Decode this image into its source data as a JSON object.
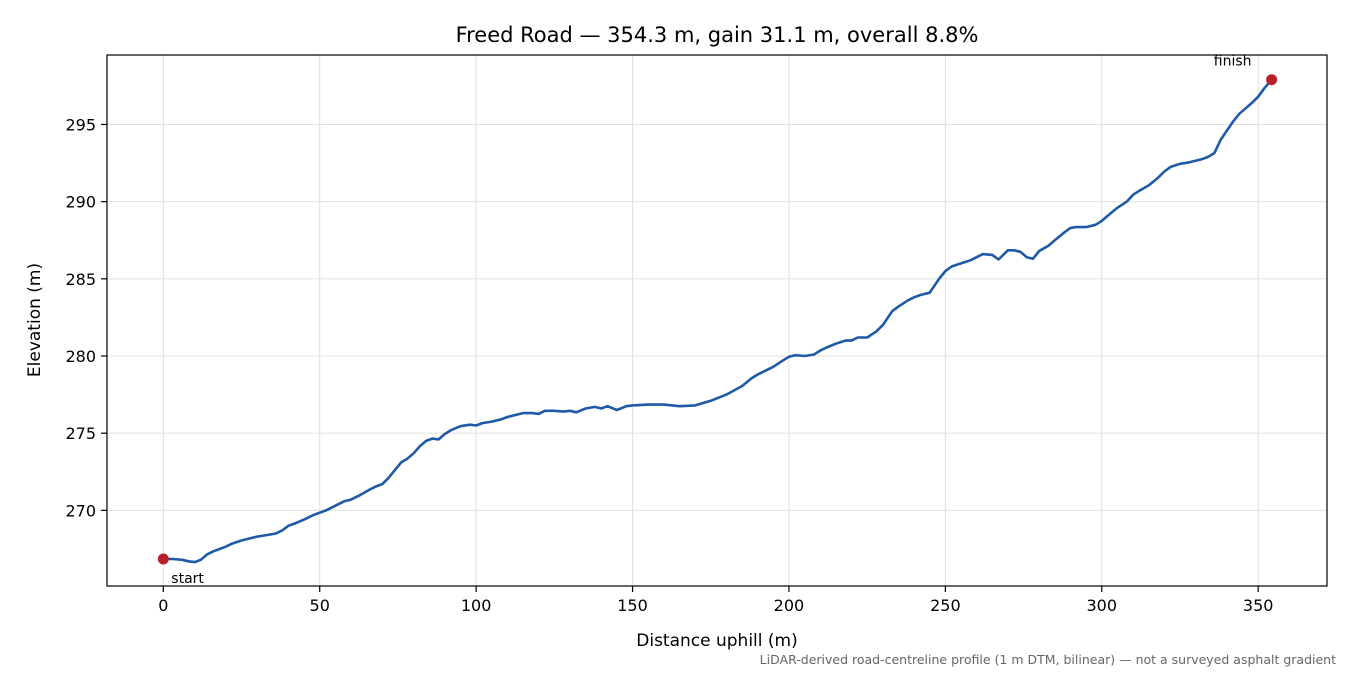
{
  "chart_data": {
    "type": "line",
    "title": "Freed Road — 354.3 m, gain 31.1 m, overall 8.8%",
    "xlabel": "Distance uphill (m)",
    "ylabel": "Elevation (m)",
    "xlim": [
      -18,
      372
    ],
    "ylim": [
      265.1,
      299.5
    ],
    "x_ticks": [
      0,
      50,
      100,
      150,
      200,
      250,
      300,
      350
    ],
    "y_ticks": [
      270,
      275,
      280,
      285,
      290,
      295
    ],
    "grid": true,
    "line_color": "#1f5aa6",
    "marker_color": "#b8202a",
    "series": [
      {
        "x": [
          0,
          3,
          6,
          8,
          10,
          12,
          14,
          16,
          18,
          20,
          22,
          25,
          28,
          30,
          33,
          36,
          38,
          40,
          42,
          45,
          48,
          50,
          52,
          55,
          58,
          60,
          63,
          66,
          68,
          70,
          72,
          74,
          76,
          78,
          80,
          82,
          84,
          86,
          88,
          90,
          92,
          95,
          98,
          100,
          102,
          105,
          108,
          110,
          112,
          115,
          118,
          120,
          122,
          125,
          128,
          130,
          132,
          135,
          138,
          140,
          142,
          145,
          148,
          150,
          155,
          160,
          165,
          170,
          175,
          180,
          185,
          188,
          190,
          195,
          198,
          200,
          202,
          205,
          208,
          210,
          212,
          215,
          218,
          220,
          222,
          225,
          228,
          230,
          233,
          235,
          238,
          240,
          242,
          245,
          248,
          250,
          252,
          255,
          258,
          260,
          262,
          265,
          267,
          270,
          272,
          274,
          276,
          278,
          280,
          283,
          285,
          288,
          290,
          292,
          295,
          298,
          300,
          302,
          305,
          308,
          310,
          312,
          315,
          318,
          320,
          322,
          325,
          328,
          330,
          332,
          334,
          336,
          338,
          340,
          342,
          344,
          346,
          348,
          350,
          352,
          354.3
        ],
        "y": [
          266.85,
          266.85,
          266.8,
          266.7,
          266.65,
          266.8,
          267.15,
          267.35,
          267.5,
          267.65,
          267.85,
          268.05,
          268.2,
          268.3,
          268.4,
          268.5,
          268.7,
          269.0,
          269.15,
          269.4,
          269.7,
          269.85,
          270.0,
          270.3,
          270.6,
          270.7,
          271.0,
          271.35,
          271.55,
          271.7,
          272.1,
          272.6,
          273.1,
          273.35,
          273.7,
          274.15,
          274.5,
          274.65,
          274.6,
          274.95,
          275.2,
          275.45,
          275.55,
          275.5,
          275.65,
          275.75,
          275.9,
          276.05,
          276.15,
          276.3,
          276.3,
          276.25,
          276.45,
          276.45,
          276.4,
          276.45,
          276.35,
          276.6,
          276.7,
          276.6,
          276.75,
          276.5,
          276.75,
          276.8,
          276.85,
          276.85,
          276.75,
          276.8,
          277.1,
          277.5,
          278.05,
          278.55,
          278.8,
          279.3,
          279.7,
          279.95,
          280.05,
          280.0,
          280.1,
          280.35,
          280.55,
          280.8,
          281.0,
          281.0,
          281.2,
          281.2,
          281.6,
          282.0,
          282.9,
          283.2,
          283.6,
          283.8,
          283.95,
          284.1,
          285.0,
          285.5,
          285.8,
          286.0,
          286.2,
          286.4,
          286.6,
          286.55,
          286.25,
          286.85,
          286.85,
          286.75,
          286.4,
          286.3,
          286.8,
          287.15,
          287.5,
          288.0,
          288.3,
          288.35,
          288.35,
          288.5,
          288.75,
          289.1,
          289.6,
          290.0,
          290.45,
          290.7,
          291.05,
          291.55,
          291.95,
          292.25,
          292.45,
          292.55,
          292.65,
          292.75,
          292.9,
          293.15,
          294.0,
          294.6,
          295.2,
          295.7,
          296.05,
          296.4,
          296.8,
          297.35,
          297.9
        ]
      }
    ],
    "points": [
      {
        "label": "start",
        "x": 0,
        "y": 266.85
      },
      {
        "label": "finish",
        "x": 354.3,
        "y": 297.9
      }
    ],
    "footnote": "LiDAR-derived road-centreline profile (1 m DTM, bilinear) — not a surveyed asphalt gradient"
  }
}
